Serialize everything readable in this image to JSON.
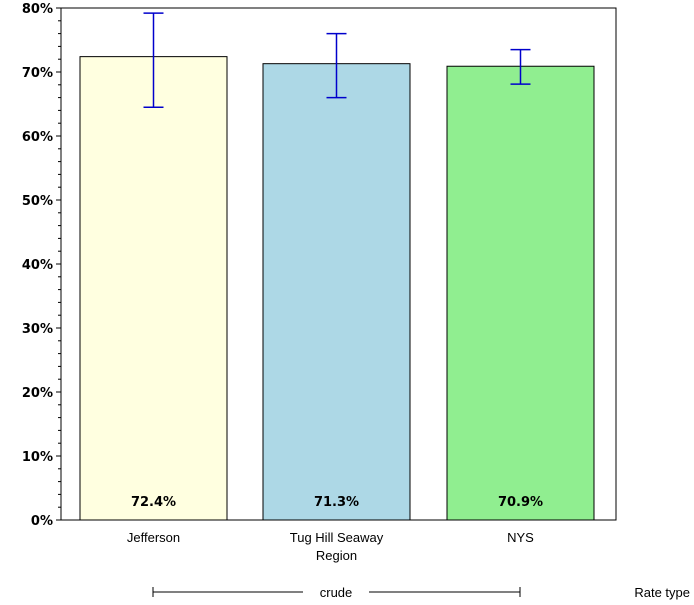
{
  "chart_data": {
    "type": "bar",
    "title": "",
    "xlabel": "",
    "ylabel": "",
    "ylim": [
      0,
      80
    ],
    "y_ticks": [
      0,
      10,
      20,
      30,
      40,
      50,
      60,
      70,
      80
    ],
    "y_tick_labels": [
      "0%",
      "10%",
      "20%",
      "30%",
      "40%",
      "50%",
      "60%",
      "70%",
      "80%"
    ],
    "categories": [
      {
        "lines": [
          "Jefferson"
        ]
      },
      {
        "lines": [
          "Tug Hill Seaway",
          "Region"
        ]
      },
      {
        "lines": [
          "NYS"
        ]
      }
    ],
    "values": [
      72.4,
      71.3,
      70.9
    ],
    "value_labels": [
      "72.4%",
      "71.3%",
      "70.9%"
    ],
    "ci_low": [
      64.5,
      66.0,
      68.1
    ],
    "ci_high": [
      79.2,
      76.0,
      73.5
    ],
    "colors": [
      "#ffffe0",
      "#add8e6",
      "#90ee90"
    ],
    "error_bar_color": "#0000cc",
    "group_label": "crude",
    "group_axis_label": "Rate type",
    "grid": false,
    "legend": "none"
  }
}
